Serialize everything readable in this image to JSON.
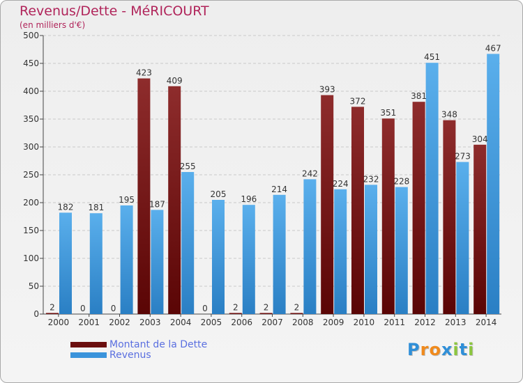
{
  "title": "Revenus/Dette - MéRICOURT",
  "subtitle": "(en milliers d'€)",
  "chart_data": {
    "type": "bar",
    "title": "Revenus/Dette - MéRICOURT",
    "ylabel": "(en milliers d'€)",
    "xlabel": "",
    "ylim": [
      0,
      500
    ],
    "yticks": [
      0,
      50,
      100,
      150,
      200,
      250,
      300,
      350,
      400,
      450,
      500
    ],
    "grid": true,
    "categories": [
      "2000",
      "2001",
      "2002",
      "2003",
      "2004",
      "2005",
      "2006",
      "2007",
      "2008",
      "2009",
      "2010",
      "2011",
      "2012",
      "2013",
      "2014"
    ],
    "series": [
      {
        "name": "Montant de la Dette",
        "color": "#7a1a1a",
        "values": [
          2,
          0,
          0,
          423,
          409,
          0,
          2,
          2,
          2,
          393,
          372,
          351,
          381,
          348,
          304
        ]
      },
      {
        "name": "Revenus",
        "color": "#3a93db",
        "values": [
          182,
          181,
          195,
          187,
          255,
          205,
          196,
          214,
          242,
          224,
          232,
          228,
          451,
          273,
          467
        ]
      }
    ],
    "data_labels": [
      [
        "2",
        "0",
        "0",
        "423",
        "409",
        "0",
        "2",
        "2",
        "2",
        "393",
        "372",
        "351",
        "381",
        "348",
        "304"
      ],
      [
        "182",
        "181",
        "195",
        "187",
        "255",
        "205",
        "196",
        "214",
        "242",
        "224",
        "232",
        "228",
        "451",
        "273",
        "467"
      ]
    ],
    "legend_position": "bottom-left"
  },
  "legend": {
    "debt_label": "Montant de la Dette",
    "revenue_label": "Revenus",
    "debt_color": "#6b0f0f",
    "revenue_color": "#3a93db"
  },
  "logo": {
    "letters": [
      "P",
      "r",
      "o",
      "x",
      "i",
      "t",
      "i"
    ],
    "colors": [
      "#2f8fd8",
      "#f08a1c",
      "#f08a1c",
      "#2f8fd8",
      "#8cc63f",
      "#2f8fd8",
      "#8cc63f"
    ]
  }
}
